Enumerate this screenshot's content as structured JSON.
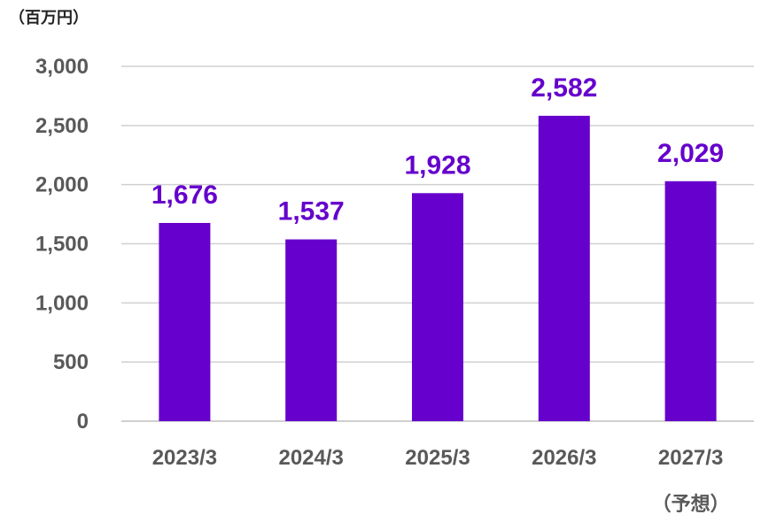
{
  "chart_data": {
    "type": "bar",
    "unit_label": "（百万円）",
    "categories": [
      "2023/3",
      "2024/3",
      "2025/3",
      "2026/3",
      "2027/3"
    ],
    "category_notes": [
      "",
      "",
      "",
      "",
      "（予想）"
    ],
    "values": [
      1676,
      1537,
      1928,
      2582,
      2029
    ],
    "value_labels": [
      "1,676",
      "1,537",
      "1,928",
      "2,582",
      "2,029"
    ],
    "ylim": [
      0,
      3000
    ],
    "yticks": [
      0,
      500,
      1000,
      1500,
      2000,
      2500,
      3000
    ],
    "ytick_labels": [
      "0",
      "500",
      "1,000",
      "1,500",
      "2,000",
      "2,500",
      "3,000"
    ],
    "grid": true,
    "bar_color": "#6600CC",
    "label_color": "#6600CC"
  }
}
